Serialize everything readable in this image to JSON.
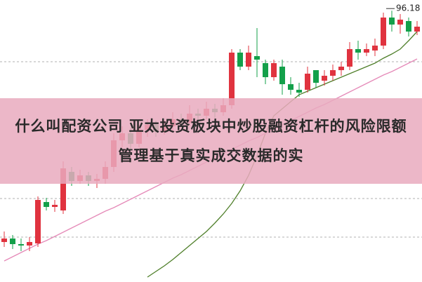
{
  "chart_data": {
    "type": "candlestick",
    "title": "什么叫配资公司 亚太投资板块中炒股融资杠杆的风险限额管理基于真实成交数据的实",
    "high_annotation": 96.18,
    "ylim": [
      57.5,
      97.7
    ],
    "up_color": "#e0333f",
    "down_color": "#13a04a",
    "open": [
      63.2,
      63.7,
      62.9,
      62.7,
      63.0,
      68.9,
      68.2,
      67.7,
      73.2,
      71.9,
      72.7,
      71.9,
      72.2,
      73.9,
      77.7,
      78.7,
      77.2,
      79.2,
      79.9,
      78.9,
      79.7,
      80.7,
      80.2,
      81.5,
      81.2,
      82.2,
      81.7,
      82.7,
      90.2,
      88.2,
      89.7,
      88.7,
      86.7,
      88.2,
      85.7,
      84.9,
      84.9,
      87.7,
      86.2,
      86.9,
      87.7,
      88.2,
      90.7,
      90.2,
      90.5,
      91.2,
      95.2,
      94.2,
      94.7,
      93.2
    ],
    "high": [
      64.7,
      64.2,
      63.7,
      63.9,
      69.7,
      69.5,
      69.2,
      74.7,
      73.9,
      73.5,
      73.2,
      72.9,
      74.7,
      78.7,
      79.7,
      79.5,
      79.9,
      80.7,
      80.5,
      80.5,
      81.7,
      81.5,
      82.7,
      82.2,
      83.2,
      82.9,
      83.7,
      90.7,
      90.7,
      91.2,
      93.7,
      89.2,
      89.2,
      89.2,
      86.7,
      85.9,
      88.2,
      87.7,
      87.7,
      88.5,
      88.9,
      91.7,
      91.9,
      91.5,
      92.2,
      95.9,
      96.18,
      95.7,
      95.2,
      94.7
    ],
    "low": [
      62.5,
      62.2,
      61.9,
      61.9,
      62.5,
      67.7,
      67.5,
      67.2,
      71.2,
      71.5,
      71.2,
      70.9,
      71.5,
      73.2,
      76.7,
      76.5,
      76.7,
      78.2,
      78.2,
      78.5,
      79.1,
      79.5,
      79.7,
      80.5,
      80.7,
      80.9,
      81.2,
      82.2,
      87.7,
      87.7,
      86.7,
      85.7,
      86.2,
      84.2,
      84.2,
      83.9,
      84.5,
      85.2,
      85.5,
      86.2,
      86.9,
      87.7,
      89.2,
      89.7,
      89.7,
      90.7,
      93.2,
      92.9,
      92.5,
      92.7
    ],
    "close": [
      63.7,
      62.9,
      62.7,
      63.2,
      69.2,
      68.2,
      68.5,
      73.7,
      71.9,
      72.7,
      71.9,
      72.2,
      73.9,
      77.7,
      78.7,
      77.2,
      79.2,
      79.9,
      78.9,
      79.7,
      80.7,
      80.2,
      81.5,
      81.2,
      82.2,
      81.7,
      82.7,
      90.2,
      88.2,
      90.2,
      89.2,
      86.7,
      88.7,
      85.7,
      84.9,
      84.5,
      87.2,
      85.9,
      86.9,
      87.7,
      88.2,
      90.7,
      90.2,
      90.7,
      91.2,
      95.2,
      94.2,
      94.9,
      93.2,
      93.9
    ],
    "series": [
      {
        "color": "#4f7f2a",
        "values": [
          null,
          null,
          null,
          null,
          null,
          null,
          null,
          null,
          null,
          null,
          null,
          null,
          null,
          null,
          null,
          null,
          null,
          58.2,
          59.0,
          59.8,
          60.7,
          61.7,
          62.7,
          63.7,
          64.7,
          65.9,
          67.2,
          68.7,
          70.5,
          72.7,
          75.5,
          78.7,
          81.2,
          82.2,
          83.2,
          84.2,
          84.7,
          85.2,
          85.7,
          86.2,
          86.7,
          87.2,
          87.7,
          88.2,
          88.7,
          89.4,
          90.0,
          90.7,
          91.9,
          93.2
        ]
      },
      {
        "color": "#e58ab8",
        "values": [
          60.5,
          61.1,
          61.7,
          62.3,
          62.9,
          63.4,
          64.0,
          64.6,
          65.2,
          65.8,
          66.4,
          67.0,
          67.6,
          68.1,
          68.7,
          69.3,
          69.9,
          70.5,
          71.1,
          71.7,
          72.3,
          72.8,
          73.4,
          74.0,
          74.6,
          75.2,
          75.8,
          76.4,
          77.0,
          77.6,
          78.1,
          78.7,
          79.3,
          79.9,
          80.5,
          81.1,
          81.7,
          82.3,
          82.8,
          83.4,
          84.0,
          84.6,
          85.2,
          85.8,
          86.4,
          87.0,
          87.5,
          88.1,
          88.7,
          89.3
        ]
      }
    ]
  }
}
